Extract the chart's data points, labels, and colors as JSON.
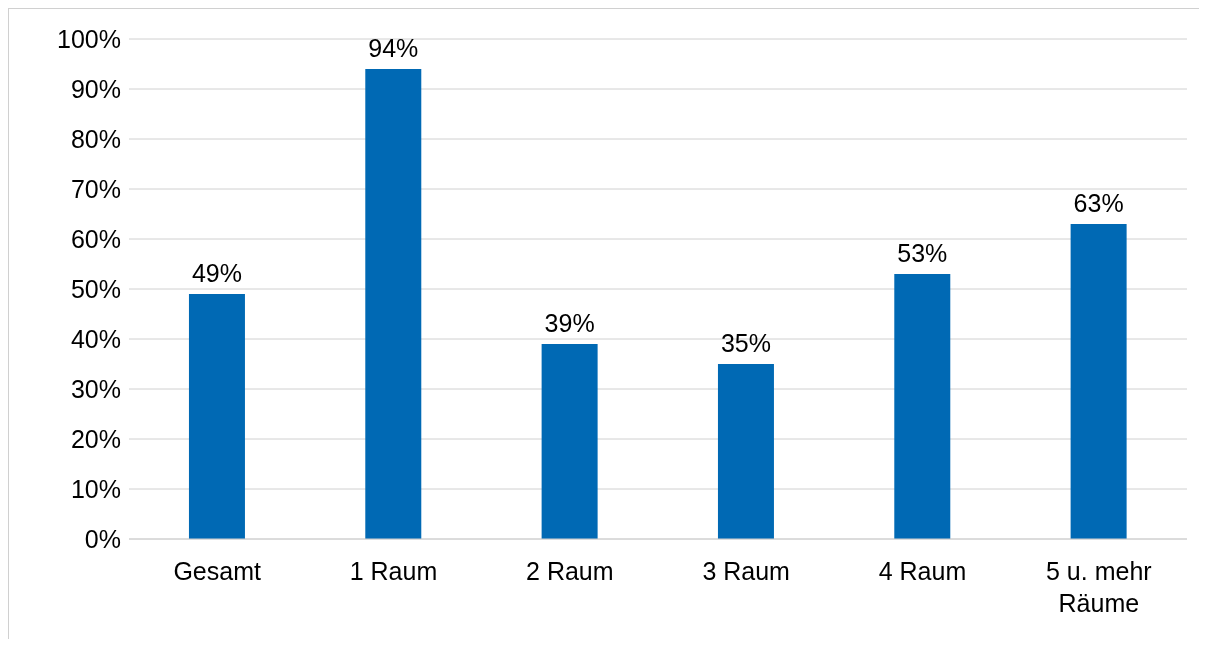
{
  "chart_data": {
    "type": "bar",
    "categories": [
      "Gesamt",
      "1 Raum",
      "2 Raum",
      "3 Raum",
      "4 Raum",
      "5 u. mehr Räume"
    ],
    "values": [
      49,
      94,
      39,
      35,
      53,
      63
    ],
    "value_labels": [
      "49%",
      "94%",
      "39%",
      "35%",
      "53%",
      "63%"
    ],
    "color": "#0069b4",
    "ylim": [
      0,
      100
    ],
    "yticks": [
      {
        "value": 0,
        "label": "0%"
      },
      {
        "value": 10,
        "label": "10%"
      },
      {
        "value": 20,
        "label": "20%"
      },
      {
        "value": 30,
        "label": "30%"
      },
      {
        "value": 40,
        "label": "40%"
      },
      {
        "value": 50,
        "label": "50%"
      },
      {
        "value": 60,
        "label": "60%"
      },
      {
        "value": 70,
        "label": "70%"
      },
      {
        "value": 80,
        "label": "80%"
      },
      {
        "value": 90,
        "label": "90%"
      },
      {
        "value": 100,
        "label": "100%"
      }
    ],
    "grid": "y"
  }
}
